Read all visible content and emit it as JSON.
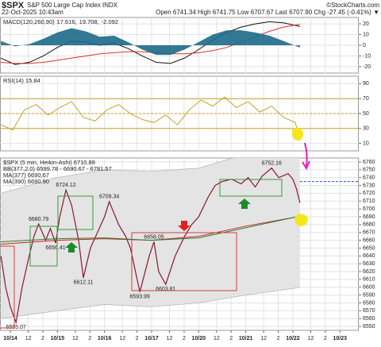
{
  "header": {
    "symbol": "$SPX",
    "name": "S&P 500 Large Cap Index INDX",
    "source": "©StockCharts.com",
    "datetime": "22-Oct-2025 10:43am",
    "quote": "Open 6741.34 High 6741.75 Low 6707.67 Last 6707.90 Chg -27.45 (-0.41%) ▼"
  },
  "chart_data": [
    {
      "type": "line",
      "title": "MACD(120,260,90)",
      "legend_layout": "row",
      "grid": true,
      "xlim": [
        -0.22,
        7.4
      ],
      "ylim": [
        -26,
        26
      ],
      "yticks": [
        20,
        10,
        0,
        -10,
        -20
      ],
      "series": [
        {
          "name": "17.616,",
          "color": "#111111",
          "kind": "line",
          "x": [
            -0.2,
            0.1,
            0.4,
            0.7,
            1.0,
            1.3,
            1.6,
            1.9,
            2.2,
            2.5,
            2.8,
            3.1,
            3.4,
            3.7,
            4.0,
            4.3,
            4.6,
            4.9,
            5.2,
            5.5,
            5.8,
            6.15
          ],
          "values": [
            -12,
            -18,
            -16,
            -10,
            -2,
            4,
            3,
            0,
            2,
            -3,
            -10,
            -16,
            -17,
            -12,
            -4,
            5,
            12,
            17,
            20,
            22,
            21,
            17.616
          ]
        },
        {
          "name": "19.708,",
          "color": "#e0301e",
          "kind": "line",
          "x": [
            -0.2,
            0.1,
            0.4,
            0.7,
            1.0,
            1.3,
            1.6,
            1.9,
            2.2,
            2.5,
            2.8,
            3.1,
            3.4,
            3.7,
            4.0,
            4.3,
            4.6,
            4.9,
            5.2,
            5.5,
            5.8,
            6.15
          ],
          "values": [
            -16,
            -17,
            -17,
            -16,
            -14,
            -12,
            -10,
            -8,
            -7,
            -6,
            -6,
            -7,
            -8,
            -8,
            -7,
            -5,
            -2,
            3,
            8,
            13,
            17,
            19.708
          ]
        },
        {
          "name": "-2.092",
          "color": "#1b6a8a",
          "kind": "area",
          "x": [
            -0.2,
            0.1,
            0.4,
            0.7,
            1.0,
            1.3,
            1.6,
            1.9,
            2.2,
            2.5,
            2.8,
            3.1,
            3.4,
            3.7,
            4.0,
            4.3,
            4.6,
            4.9,
            5.2,
            5.5,
            5.8,
            6.15
          ],
          "values": [
            4,
            -1,
            1,
            6,
            12,
            16,
            13,
            8,
            9,
            3,
            -4,
            -9,
            -9,
            -4,
            3,
            10,
            14,
            14,
            12,
            9,
            4,
            -2.092
          ]
        }
      ]
    },
    {
      "type": "line",
      "title": "RSI(14) 15.84",
      "grid": true,
      "xlim": [
        -0.22,
        7.4
      ],
      "ylim": [
        0,
        100
      ],
      "yticks": [
        90,
        70,
        50,
        30,
        10
      ],
      "reference_color": "#c9a227",
      "reference_lines": [
        {
          "value": 70,
          "style": "solid"
        },
        {
          "value": 50,
          "style": "dashed"
        },
        {
          "value": 30,
          "style": "solid"
        }
      ],
      "series": [
        {
          "color": "#c9a227",
          "kind": "line",
          "x": [
            -0.2,
            0.05,
            0.3,
            0.55,
            0.8,
            1.05,
            1.3,
            1.55,
            1.8,
            2.05,
            2.3,
            2.55,
            2.8,
            3.05,
            3.3,
            3.55,
            3.8,
            4.05,
            4.3,
            4.55,
            4.8,
            5.05,
            5.3,
            5.55,
            5.8,
            6.05,
            6.15
          ],
          "values": [
            35,
            28,
            55,
            62,
            48,
            58,
            66,
            45,
            40,
            55,
            62,
            50,
            42,
            38,
            48,
            35,
            55,
            68,
            60,
            72,
            58,
            66,
            52,
            60,
            45,
            38,
            15.84
          ]
        }
      ]
    },
    {
      "type": "line",
      "title": "$SPX (5 min, Heikin-Ashi) 6710.88",
      "legend_layout": "column",
      "grid": true,
      "xlim": [
        -0.22,
        7.4
      ],
      "ylim": [
        6545,
        6765
      ],
      "yticks": [
        6760,
        6750,
        6740,
        6730,
        6720,
        6710,
        6700,
        6690,
        6680,
        6670,
        6660,
        6650,
        6640,
        6630,
        6620,
        6610,
        6600,
        6590,
        6580,
        6570,
        6560,
        6550
      ],
      "xticks": [
        {
          "value": 0,
          "label": "10/14"
        },
        {
          "value": 0.38,
          "label": "12"
        },
        {
          "value": 0.69,
          "label": "2"
        },
        {
          "value": 1,
          "label": "10/15"
        },
        {
          "value": 1.38,
          "label": "12"
        },
        {
          "value": 1.69,
          "label": "2"
        },
        {
          "value": 2,
          "label": "10/16"
        },
        {
          "value": 2.38,
          "label": "12"
        },
        {
          "value": 2.69,
          "label": "2"
        },
        {
          "value": 3,
          "label": "10/17"
        },
        {
          "value": 3.38,
          "label": "12"
        },
        {
          "value": 3.69,
          "label": "2"
        },
        {
          "value": 4,
          "label": "10/20"
        },
        {
          "value": 4.38,
          "label": "12"
        },
        {
          "value": 4.69,
          "label": "2"
        },
        {
          "value": 5,
          "label": "10/21"
        },
        {
          "value": 5.38,
          "label": "12"
        },
        {
          "value": 5.69,
          "label": "2"
        },
        {
          "value": 6,
          "label": "10/22"
        },
        {
          "value": 6.38,
          "label": "12"
        },
        {
          "value": 6.69,
          "label": "2"
        },
        {
          "value": 7,
          "label": "10/23"
        }
      ],
      "band": {
        "name": "BB(377,2.0) 6599.78 - 6690.67 - 6781.57",
        "color": "#e4e4e4",
        "x": [
          -0.2,
          1,
          2,
          3,
          4,
          5,
          6.15
        ],
        "upper": [
          6720,
          6740,
          6750,
          6748,
          6752,
          6770,
          6781.57
        ],
        "lower": [
          6560,
          6570,
          6578,
          6575,
          6580,
          6590,
          6599.78
        ]
      },
      "reference_color": "#2244cc",
      "reference_lines": [
        {
          "value": 6735,
          "style": "dashed",
          "xrange": [
            6.15,
            7.4
          ]
        }
      ],
      "series": [
        {
          "color": "#8b1538",
          "kind": "line",
          "x": [
            -0.2,
            -0.1,
            0,
            0.12,
            0.25,
            0.4,
            0.5,
            0.6,
            0.75,
            0.85,
            0.96,
            1.05,
            1.18,
            1.3,
            1.45,
            1.55,
            1.7,
            1.85,
            2.0,
            2.1,
            2.3,
            2.45,
            2.55,
            2.75,
            2.95,
            3.05,
            3.15,
            3.3,
            3.5,
            3.7,
            3.85,
            4.0,
            4.2,
            4.35,
            4.5,
            4.7,
            4.9,
            5.05,
            5.2,
            5.35,
            5.55,
            5.7,
            5.9,
            6.0,
            6.08,
            6.15
          ],
          "values": [
            6640,
            6600,
            6575,
            6555.07,
            6600,
            6640,
            6665,
            6680.79,
            6660,
            6675,
            6656.41,
            6690,
            6724.12,
            6705,
            6660,
            6612.11,
            6650,
            6670,
            6690,
            6709.34,
            6680,
            6665,
            6650,
            6593.99,
            6640,
            6658.05,
            6620,
            6603.81,
            6640,
            6665,
            6680,
            6690,
            6715,
            6730,
            6735,
            6738,
            6732,
            6740,
            6728,
            6742,
            6752.16,
            6740,
            6745,
            6738,
            6725,
            6707.9
          ]
        },
        {
          "name": "MA(377) 6690.67",
          "color": "#cc2222",
          "kind": "line",
          "x": [
            -0.2,
            1,
            2,
            3,
            4,
            5,
            6.15
          ],
          "values": [
            6655,
            6660,
            6662,
            6660,
            6665,
            6678,
            6690.67
          ]
        },
        {
          "name": "MA(390) 6690.90",
          "color": "#2e7d32",
          "kind": "line",
          "x": [
            -0.2,
            1,
            2,
            3,
            4,
            5,
            6.15
          ],
          "values": [
            6658,
            6662,
            6663,
            6660,
            6663,
            6676,
            6690.9
          ]
        }
      ],
      "highs": [
        {
          "x": 0.6,
          "y": 6680.79
        },
        {
          "x": 1.18,
          "y": 6724.12
        },
        {
          "x": 2.1,
          "y": 6709.34
        },
        {
          "x": 3.05,
          "y": 6658.05
        },
        {
          "x": 5.55,
          "y": 6752.16
        }
      ],
      "lows": [
        {
          "x": 0.12,
          "y": 6555.07
        },
        {
          "x": 0.96,
          "y": 6656.41
        },
        {
          "x": 1.55,
          "y": 6612.11
        },
        {
          "x": 2.75,
          "y": 6593.99
        },
        {
          "x": 3.3,
          "y": 6603.81
        }
      ]
    }
  ]
}
